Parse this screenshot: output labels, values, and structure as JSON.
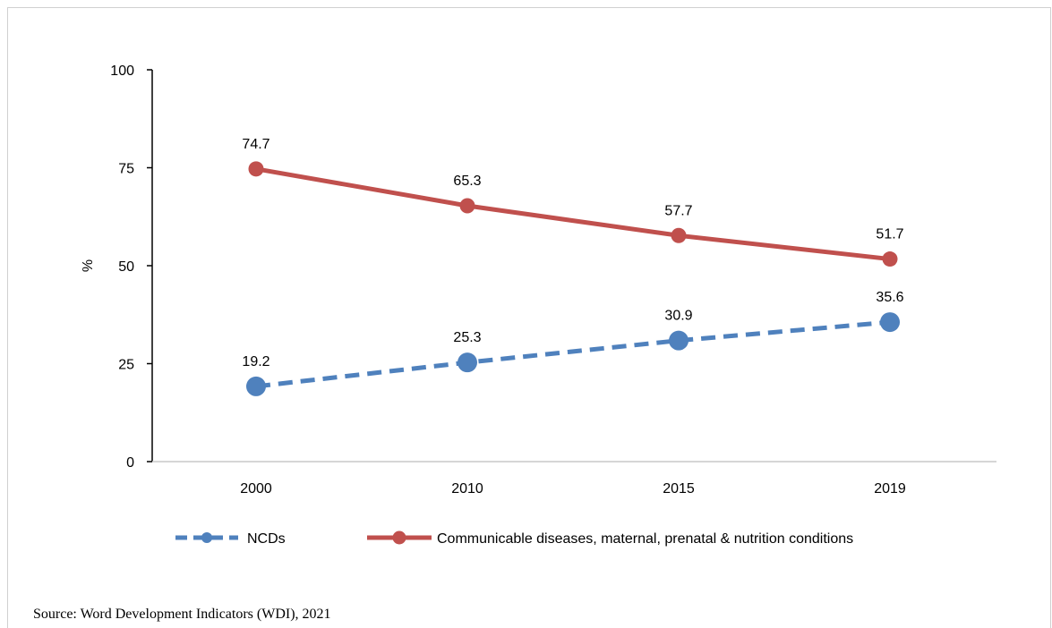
{
  "chart_data": {
    "type": "line",
    "categories": [
      "2000",
      "2010",
      "2015",
      "2019"
    ],
    "ylabel": "%",
    "ylim": [
      0,
      100
    ],
    "yticks": [
      0,
      25,
      50,
      75,
      100
    ],
    "grid": false,
    "legend_position": "bottom",
    "series": [
      {
        "name": "NCDs",
        "values": [
          19.2,
          25.3,
          30.9,
          35.6
        ],
        "color": "#4f81bd",
        "line_style": "dashed",
        "marker": "circle"
      },
      {
        "name": "Communicable diseases, maternal, prenatal & nutrition conditions",
        "values": [
          74.7,
          65.3,
          57.7,
          51.7
        ],
        "color": "#c0504d",
        "line_style": "solid",
        "marker": "circle"
      }
    ]
  },
  "source_note": "Source: Word Development Indicators (WDI), 2021"
}
